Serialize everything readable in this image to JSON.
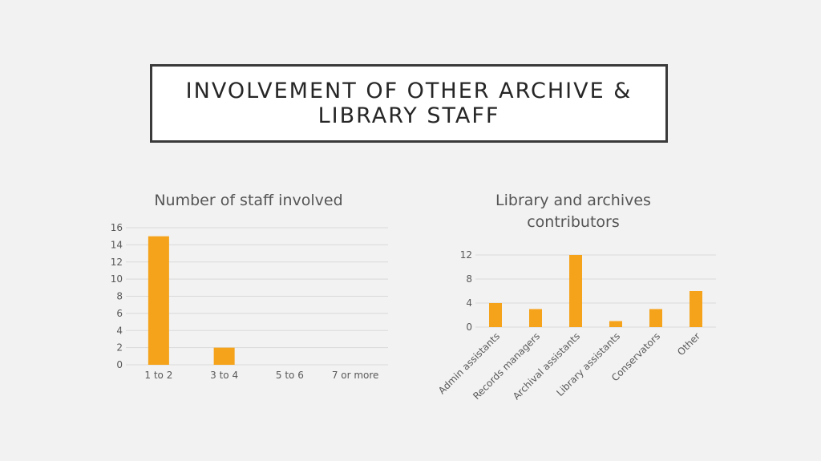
{
  "slide": {
    "title": "INVOLVEMENT OF OTHER ARCHIVE & LIBRARY STAFF"
  },
  "colors": {
    "bar": "#f5a31a",
    "background": "#f2f2f2",
    "grid": "#d9d9d9"
  },
  "chart_data": [
    {
      "type": "bar",
      "title": "Number of staff involved",
      "categories": [
        "1 to 2",
        "3 to 4",
        "5 to 6",
        "7 or more"
      ],
      "values": [
        15,
        2,
        0,
        0
      ],
      "xlabel": "",
      "ylabel": "",
      "ylim": [
        0,
        16
      ],
      "yticks": [
        0,
        2,
        4,
        6,
        8,
        10,
        12,
        14,
        16
      ],
      "grid": true,
      "legend": "none"
    },
    {
      "type": "bar",
      "title": "Library and archives contributors",
      "categories": [
        "Admin assistants",
        "Records managers",
        "Archival assistants",
        "Library assistants",
        "Conservators",
        "Other"
      ],
      "values": [
        4,
        3,
        12,
        1,
        3,
        6
      ],
      "xlabel": "",
      "ylabel": "",
      "ylim": [
        0,
        12
      ],
      "yticks": [
        0,
        4,
        8,
        12
      ],
      "grid": true,
      "legend": "none"
    }
  ]
}
